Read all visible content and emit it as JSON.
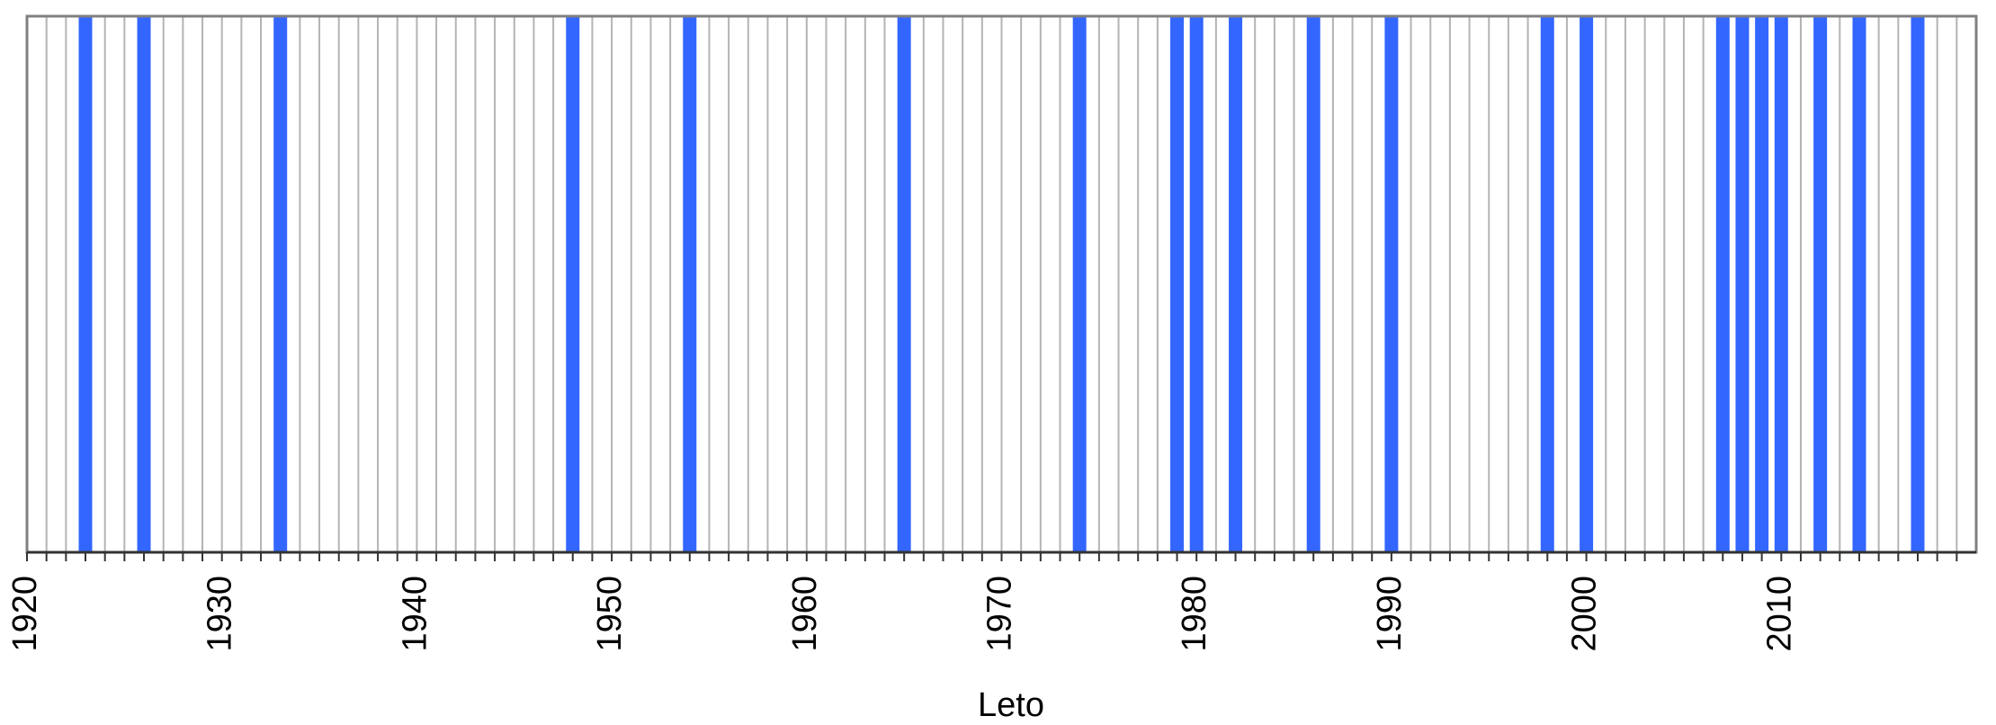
{
  "chart_data": {
    "type": "bar",
    "xlabel": "Leto",
    "ylabel": "",
    "title": "",
    "x_range": [
      1920,
      2019
    ],
    "x_ticks": [
      1920,
      1930,
      1940,
      1950,
      1960,
      1970,
      1980,
      1990,
      2000,
      2010
    ],
    "marked_years": [
      1923,
      1926,
      1933,
      1948,
      1954,
      1965,
      1974,
      1979,
      1980,
      1982,
      1986,
      1990,
      1998,
      2000,
      2007,
      2008,
      2009,
      2010,
      2012,
      2014,
      2017
    ],
    "grid": "vertical lines for every year",
    "legend": "none",
    "colors": {
      "marked": "#3366ff",
      "grid": "#b4b4b4",
      "frame": "#808080",
      "axis": "#333333"
    }
  }
}
